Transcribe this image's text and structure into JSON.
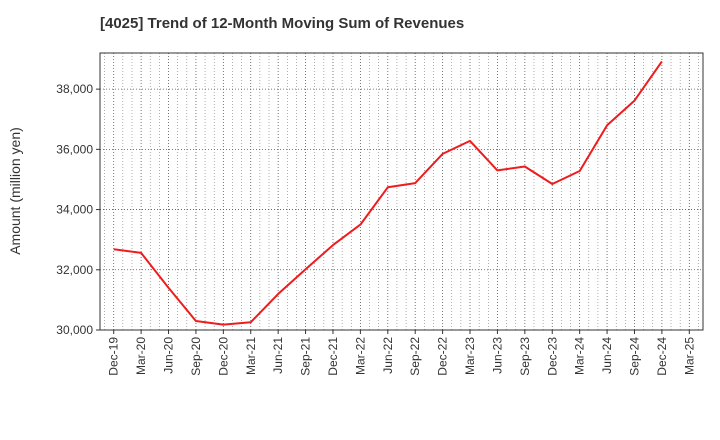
{
  "title": "[4025]  Trend of 12-Month Moving Sum of Revenues",
  "chart_data": {
    "type": "line",
    "title": "[4025]  Trend of 12-Month Moving Sum of Revenues",
    "xlabel": "",
    "ylabel": "Amount (million yen)",
    "categories": [
      "Dec-19",
      "Mar-20",
      "Jun-20",
      "Sep-20",
      "Dec-20",
      "Mar-21",
      "Jun-21",
      "Sep-21",
      "Dec-21",
      "Mar-22",
      "Jun-22",
      "Sep-22",
      "Dec-22",
      "Mar-23",
      "Jun-23",
      "Sep-23",
      "Dec-23",
      "Mar-24",
      "Jun-24",
      "Sep-24",
      "Dec-24",
      "Mar-25"
    ],
    "x_ticks": [
      "Dec-19",
      "Mar-20",
      "Jun-20",
      "Sep-20",
      "Dec-20",
      "Mar-21",
      "Jun-21",
      "Sep-21",
      "Dec-21",
      "Mar-22",
      "Jun-22",
      "Sep-22",
      "Dec-22",
      "Mar-23",
      "Jun-23",
      "Sep-23",
      "Dec-23",
      "Mar-24",
      "Jun-24",
      "Sep-24",
      "Dec-24",
      "Mar-25"
    ],
    "y_ticks": [
      "30,000",
      "32,000",
      "34,000",
      "36,000",
      "38,000"
    ],
    "y_tick_values": [
      30000,
      32000,
      34000,
      36000,
      38000
    ],
    "ylim": [
      30000,
      39200
    ],
    "grid": true,
    "series": [
      {
        "values": [
          32680,
          32560,
          31400,
          30300,
          30180,
          30260,
          31200,
          32020,
          32820,
          33500,
          34740,
          34880,
          35850,
          36280,
          35300,
          35430,
          34850,
          35280,
          36800,
          37620,
          38920,
          null
        ]
      }
    ],
    "line_color": "#ee1c1c"
  }
}
